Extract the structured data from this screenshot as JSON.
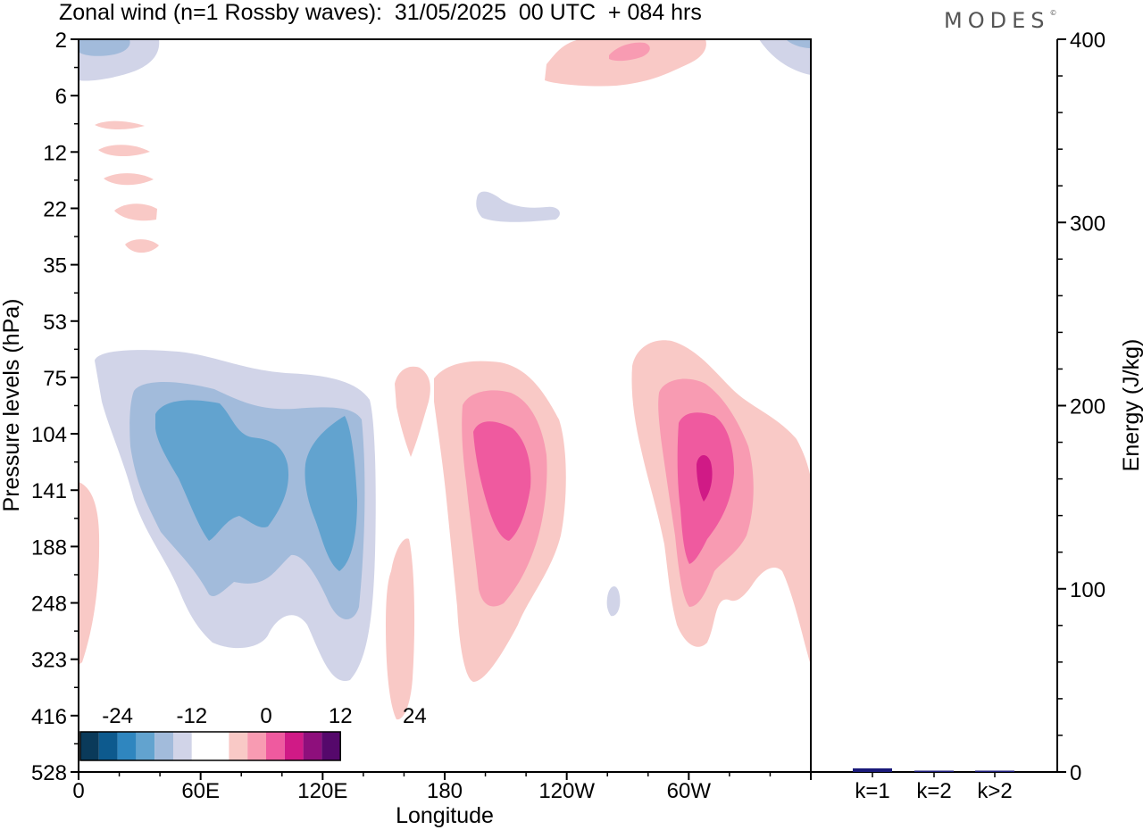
{
  "header": {
    "title": "Zonal wind (n=1 Rossby waves):  31/05/2025  00 UTC  + 084 hrs",
    "logo": "MODES",
    "logo_mark": "©"
  },
  "chart_data": [
    {
      "type": "heatmap",
      "xlabel": "Longitude",
      "ylabel": "Pressure levels (hPa)",
      "x_ticks": [
        "0",
        "60E",
        "120E",
        "180",
        "120W",
        "60W"
      ],
      "x_range_deg": [
        0,
        360
      ],
      "y_ticks": [
        "2",
        "6",
        "12",
        "22",
        "35",
        "53",
        "75",
        "104",
        "141",
        "188",
        "248",
        "323",
        "416",
        "528"
      ],
      "y_scale": "pressure levels, evenly spaced",
      "colorbar": {
        "labels": [
          "-24",
          "-12",
          "0",
          "12",
          "24"
        ],
        "label_values": [
          -24,
          -12,
          0,
          12,
          24
        ],
        "step": 3,
        "colors": [
          "#0a3a5a",
          "#0d5a8e",
          "#2f86bf",
          "#62a3cf",
          "#a2bbdb",
          "#d1d4e8",
          "#ffffff",
          "#ffffff",
          "#f9c9c6",
          "#f89bb2",
          "#ef5a9f",
          "#d01a86",
          "#8e0f7c",
          "#55086b"
        ]
      },
      "features": [
        {
          "sign": "negative",
          "center_lon": 90,
          "center_level": "141",
          "peak": -9
        },
        {
          "sign": "negative",
          "center_lon": 125,
          "center_level": "141",
          "peak": -9
        },
        {
          "sign": "positive",
          "center_lon": 200,
          "center_level": "141",
          "peak": 9
        },
        {
          "sign": "positive",
          "center_lon": 293,
          "center_level": "141",
          "peak": 12
        },
        {
          "sign": "negative",
          "center_lon": 8,
          "center_level": "2",
          "peak": -3
        },
        {
          "sign": "positive",
          "center_lon": 274,
          "center_level": "2",
          "peak": 6
        }
      ]
    },
    {
      "type": "bar",
      "ylabel": "Energy (J/kg)",
      "ylim": [
        0,
        400
      ],
      "y_ticks": [
        "0",
        "100",
        "200",
        "300",
        "400"
      ],
      "categories": [
        "k=1",
        "k=2",
        "k>2"
      ],
      "values": [
        2,
        0.5,
        0.5
      ],
      "bar_color": "#1a1a7a"
    }
  ]
}
